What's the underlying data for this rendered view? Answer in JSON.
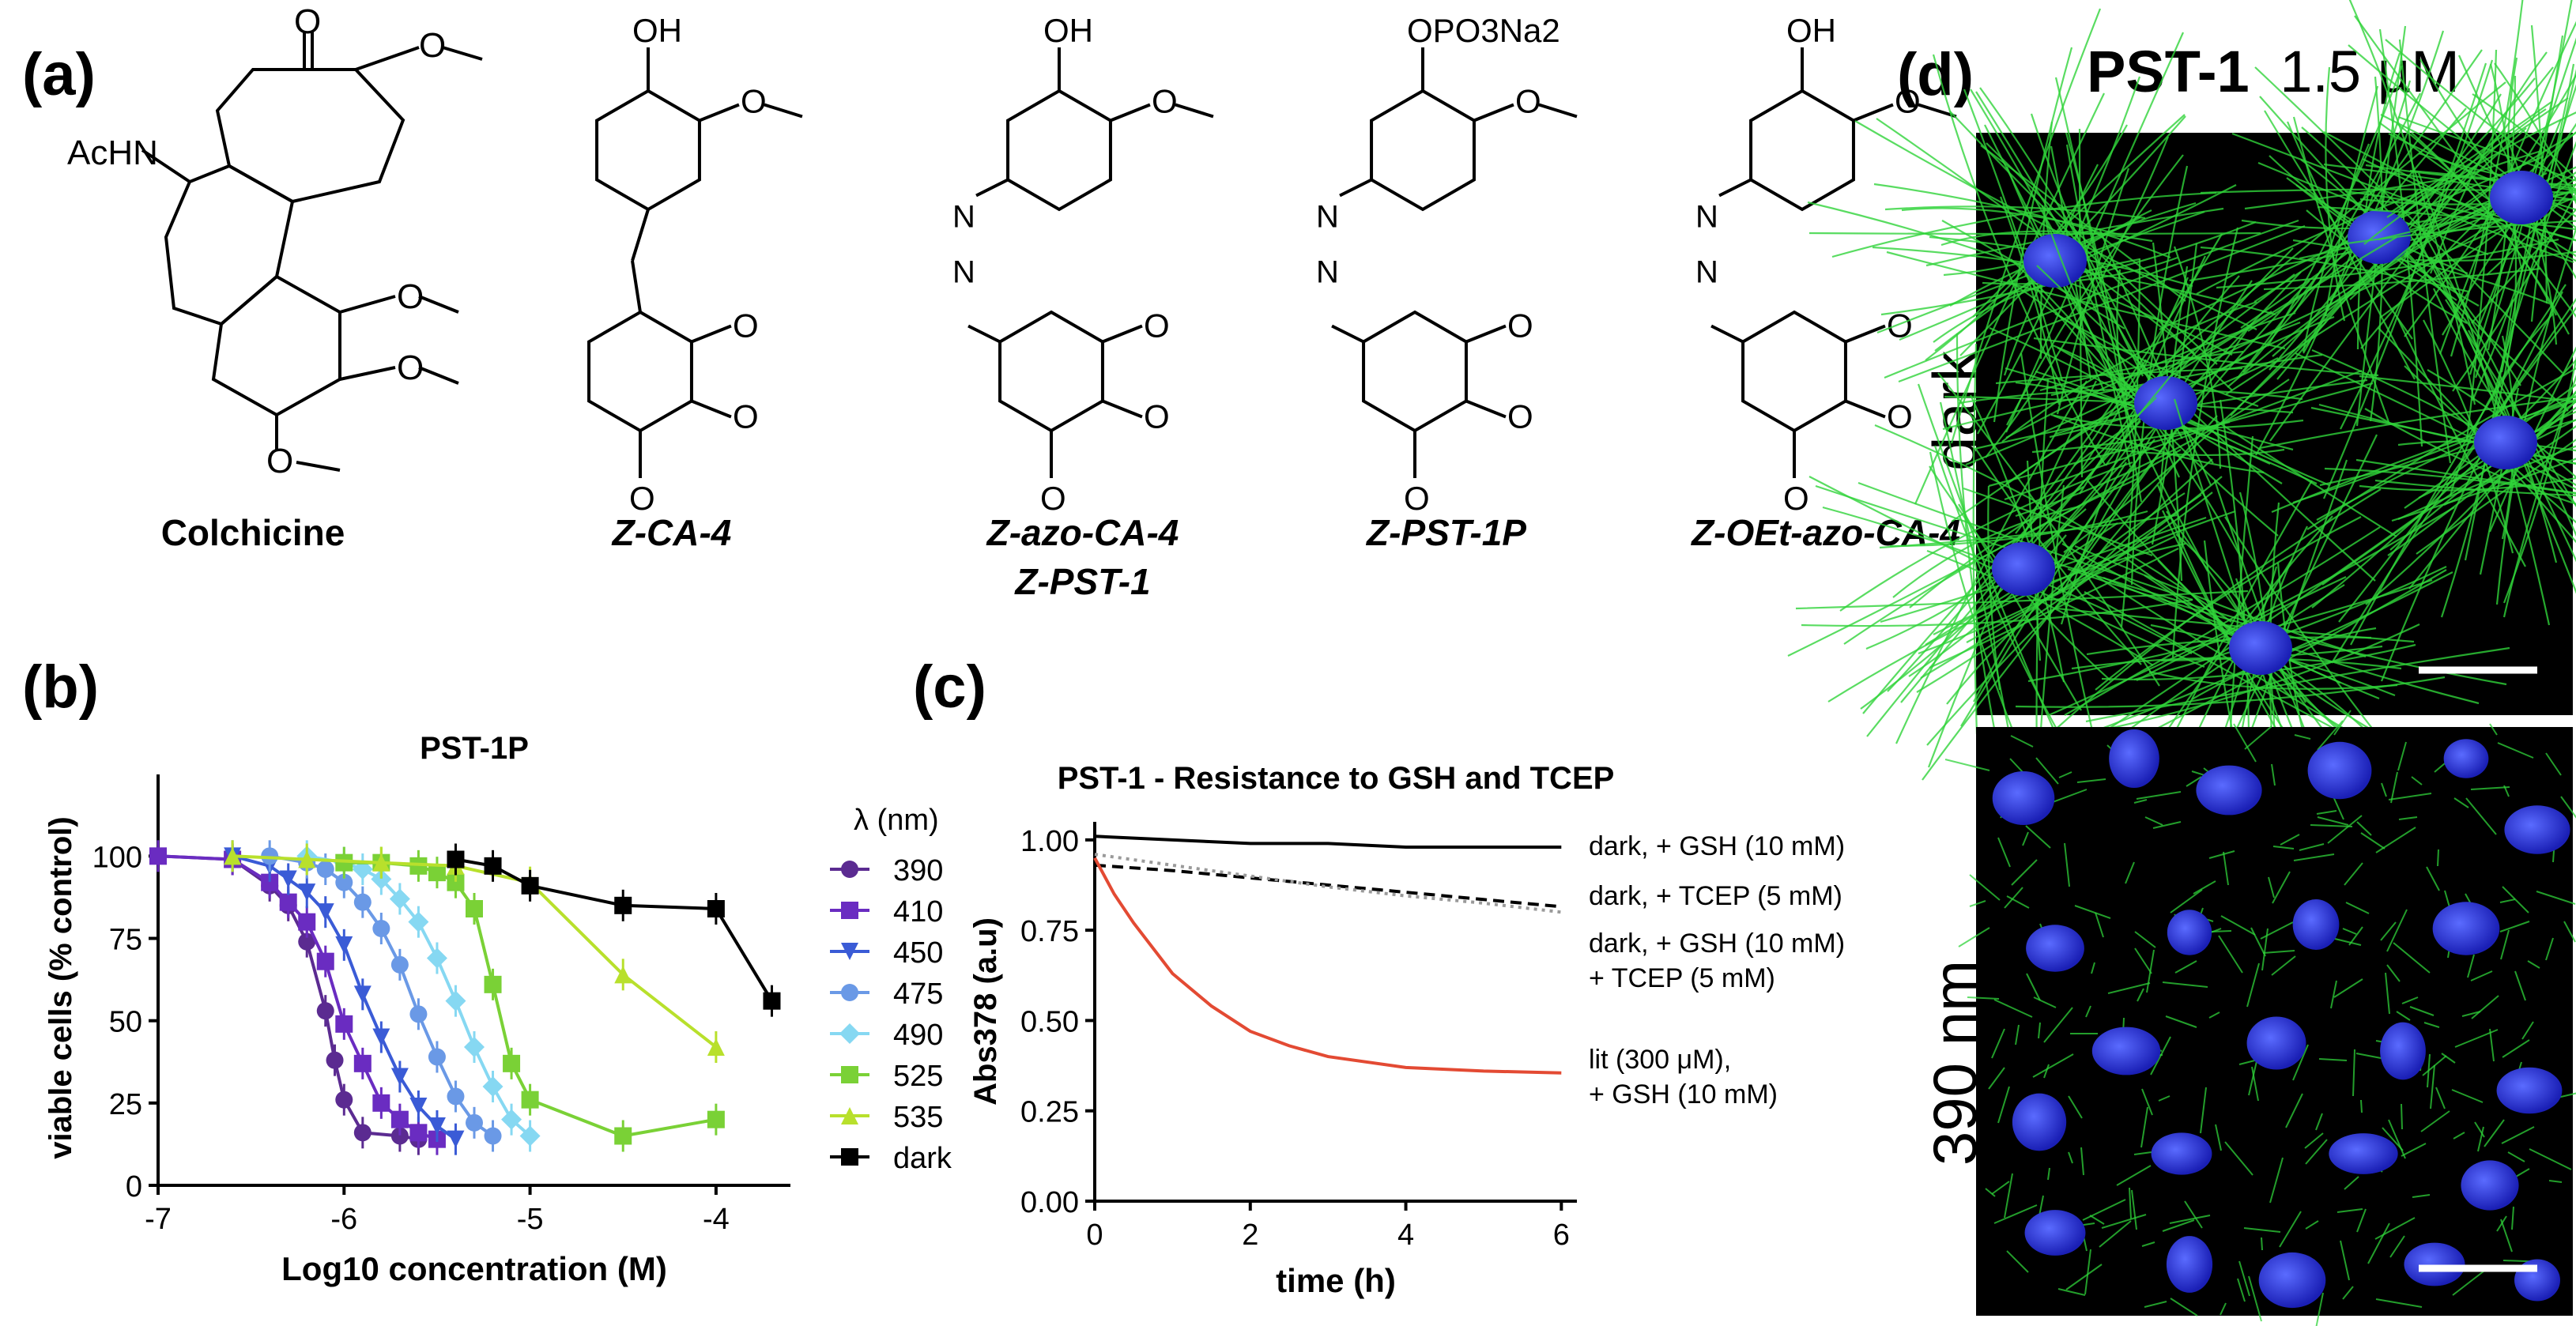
{
  "panels": {
    "a": {
      "label": "(a)",
      "compounds": [
        {
          "name_line1": "Colchicine",
          "name_line2": "",
          "acetamido": "AcHN",
          "carbonyl": "O"
        },
        {
          "name_line1": "Z-CA-4",
          "name_line2": "",
          "top_substituent": "OH"
        },
        {
          "name_line1": "Z-azo-CA-4",
          "name_line2": "Z-PST-1",
          "top_substituent": "OH",
          "azo_atom": "N"
        },
        {
          "name_line1": "Z-PST-1P",
          "name_line2": "",
          "top_substituent": "OPO3Na2",
          "azo_atom": "N"
        },
        {
          "name_line1": "Z-OEt-azo-CA-4",
          "name_line2": "",
          "top_substituent": "OH",
          "azo_atom": "N"
        }
      ],
      "methoxy_atom": "O"
    },
    "b": {
      "label": "(b)"
    },
    "c": {
      "label": "(c)"
    },
    "d": {
      "label": "(d)",
      "title_bold": "PST-1",
      "title_rest": "1.5 µM",
      "rows": [
        {
          "label": "dark",
          "description": "fluorescence micrograph, intact microtubule network (green) with nuclei (blue)"
        },
        {
          "label": "390 nm",
          "description": "fluorescence micrograph, fragmented microtubules (green) with nuclei (blue)"
        }
      ]
    }
  },
  "chart_data": [
    {
      "type": "line",
      "panel": "b",
      "title": "PST-1P",
      "xlabel": "Log10 concentration (M)",
      "ylabel": "viable cells (% control)",
      "xlim": [
        -7,
        -3.6
      ],
      "ylim": [
        0,
        120
      ],
      "xticks": [
        -7,
        -6,
        -5,
        -4
      ],
      "yticks": [
        0,
        25,
        50,
        75,
        100
      ],
      "legend_title": "λ (nm)",
      "legend_position": "right",
      "series": [
        {
          "name": "390",
          "color": "#5b2b91",
          "marker": "circle",
          "x": [
            -7,
            -6.6,
            -6.4,
            -6.3,
            -6.2,
            -6.1,
            -6.05,
            -6,
            -5.9,
            -5.7,
            -5.6
          ],
          "y": [
            100,
            99,
            91,
            85,
            74,
            53,
            38,
            26,
            16,
            15,
            14
          ]
        },
        {
          "name": "410",
          "color": "#6a2cc1",
          "marker": "square",
          "x": [
            -7,
            -6.6,
            -6.4,
            -6.3,
            -6.2,
            -6.1,
            -6,
            -5.9,
            -5.8,
            -5.7,
            -5.6,
            -5.5
          ],
          "y": [
            100,
            99,
            92,
            86,
            80,
            68,
            49,
            37,
            25,
            20,
            16,
            14
          ]
        },
        {
          "name": "450",
          "color": "#3a5bd6",
          "marker": "triangle-down",
          "x": [
            -6.6,
            -6.4,
            -6.3,
            -6.2,
            -6.1,
            -6,
            -5.9,
            -5.8,
            -5.7,
            -5.6,
            -5.5,
            -5.4
          ],
          "y": [
            100,
            97,
            93,
            89,
            83,
            73,
            58,
            45,
            33,
            24,
            18,
            14
          ]
        },
        {
          "name": "475",
          "color": "#6a99e6",
          "marker": "circle",
          "x": [
            -6.4,
            -6.2,
            -6.1,
            -6,
            -5.9,
            -5.8,
            -5.7,
            -5.6,
            -5.5,
            -5.4,
            -5.3,
            -5.2
          ],
          "y": [
            100,
            98,
            96,
            92,
            86,
            78,
            67,
            52,
            39,
            27,
            19,
            15
          ]
        },
        {
          "name": "490",
          "color": "#86d8f2",
          "marker": "diamond",
          "x": [
            -6.2,
            -6,
            -5.9,
            -5.8,
            -5.7,
            -5.6,
            -5.5,
            -5.4,
            -5.3,
            -5.2,
            -5.1,
            -5
          ],
          "y": [
            100,
            98,
            96,
            93,
            87,
            80,
            69,
            56,
            42,
            30,
            20,
            15
          ]
        },
        {
          "name": "525",
          "color": "#7ad136",
          "marker": "square",
          "x": [
            -6,
            -5.8,
            -5.6,
            -5.5,
            -5.4,
            -5.3,
            -5.2,
            -5.1,
            -5,
            -4.5,
            -4
          ],
          "y": [
            98,
            98,
            97,
            95,
            92,
            84,
            61,
            37,
            26,
            15,
            20
          ]
        },
        {
          "name": "535",
          "color": "#b8e02c",
          "marker": "triangle-up",
          "x": [
            -6.6,
            -6.2,
            -5.8,
            -5.4,
            -5,
            -4.5,
            -4
          ],
          "y": [
            100,
            99,
            98,
            97,
            92,
            64,
            42
          ]
        },
        {
          "name": "dark",
          "color": "#000000",
          "marker": "square",
          "x": [
            -5.4,
            -5.2,
            -5,
            -4.5,
            -4,
            -3.7
          ],
          "y": [
            99,
            97,
            91,
            85,
            84,
            56
          ]
        }
      ]
    },
    {
      "type": "line",
      "panel": "c",
      "title": "PST-1 - Resistance to GSH and TCEP",
      "xlabel": "time (h)",
      "ylabel": "Abs378 (a.u)",
      "xlim": [
        0,
        6.2
      ],
      "ylim": [
        0,
        1.05
      ],
      "xticks": [
        0,
        2,
        4,
        6
      ],
      "yticks": [
        0,
        0.25,
        0.5,
        0.75,
        1
      ],
      "ytick_labels": [
        "0.00",
        "0.25",
        "0.50",
        "0.75",
        "1.00"
      ],
      "series": [
        {
          "name": "dark, + GSH (10 mM)",
          "color": "#000000",
          "style": "solid",
          "x": [
            0,
            1,
            2,
            3,
            4,
            5,
            6
          ],
          "y": [
            1.01,
            1.0,
            0.99,
            0.99,
            0.98,
            0.98,
            0.98
          ]
        },
        {
          "name": "dark, + TCEP (5 mM)",
          "color": "#000000",
          "style": "dashed",
          "x": [
            0,
            1,
            2,
            3,
            4,
            5,
            6
          ],
          "y": [
            0.93,
            0.915,
            0.895,
            0.875,
            0.855,
            0.835,
            0.815
          ]
        },
        {
          "name_line1": "dark, + GSH (10 mM)",
          "name_line2": "+ TCEP (5 mM)",
          "color": "#9a9a9a",
          "style": "dotted",
          "x": [
            0,
            1,
            2,
            3,
            4,
            5,
            6
          ],
          "y": [
            0.96,
            0.93,
            0.9,
            0.87,
            0.845,
            0.825,
            0.8
          ]
        },
        {
          "name_line1": "lit (300 μM),",
          "name_line2": "+ GSH (10 mM)",
          "color": "#e34a33",
          "style": "solid",
          "x": [
            0,
            0.25,
            0.5,
            1,
            1.5,
            2,
            2.5,
            3,
            4,
            5,
            6
          ],
          "y": [
            0.95,
            0.85,
            0.77,
            0.63,
            0.54,
            0.47,
            0.43,
            0.4,
            0.37,
            0.36,
            0.355
          ]
        }
      ]
    }
  ]
}
